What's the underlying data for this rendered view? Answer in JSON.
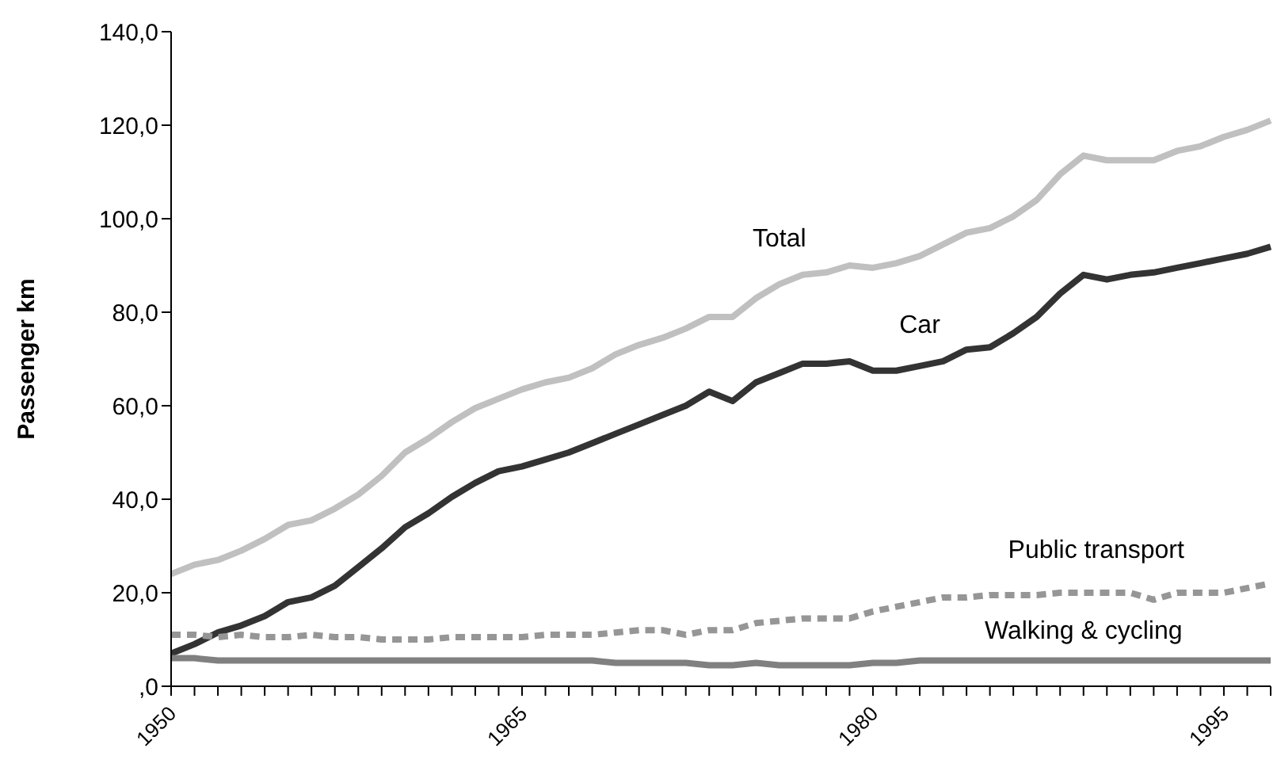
{
  "chart_data": {
    "type": "line",
    "ylabel": "Passenger km",
    "categories": [
      "1950",
      null,
      null,
      null,
      null,
      null,
      null,
      null,
      null,
      null,
      null,
      null,
      null,
      null,
      null,
      "1965",
      null,
      null,
      null,
      null,
      null,
      null,
      null,
      null,
      null,
      null,
      null,
      null,
      null,
      null,
      "1980",
      null,
      null,
      null,
      null,
      null,
      null,
      null,
      null,
      null,
      null,
      null,
      null,
      null,
      null,
      "1995",
      null,
      null
    ],
    "series": [
      {
        "name": "Total",
        "color": "#c0c0c0",
        "line_style": "solid",
        "values": [
          24,
          26,
          27,
          29,
          31.5,
          34.5,
          35.5,
          38,
          41,
          45,
          50,
          53,
          56.5,
          59.5,
          61.5,
          63.5,
          65,
          66,
          68,
          71,
          73,
          74.5,
          76.5,
          79,
          79,
          83,
          86,
          88,
          88.5,
          90,
          89.5,
          90.5,
          92,
          94.5,
          97,
          98,
          100.5,
          104,
          109.5,
          113.5,
          112.5,
          112.5,
          112.5,
          114.5,
          115.5,
          117.5,
          119,
          121
        ]
      },
      {
        "name": "Car",
        "color": "#333333",
        "line_style": "solid",
        "values": [
          7,
          9,
          11.5,
          13,
          15,
          18,
          19,
          21.5,
          25.5,
          29.5,
          34,
          37,
          40.5,
          43.5,
          46,
          47,
          48.5,
          50,
          52,
          54,
          56,
          58,
          60,
          63,
          61,
          65,
          67,
          69,
          69,
          69.5,
          67.5,
          67.5,
          68.5,
          69.5,
          72,
          72.5,
          75.5,
          79,
          84,
          88,
          87,
          88,
          88.5,
          89.5,
          90.5,
          91.5,
          92.5,
          94
        ]
      },
      {
        "name": "Public transport",
        "color": "#969696",
        "line_style": "dashed",
        "values": [
          11,
          11,
          10.5,
          11,
          10.5,
          10.5,
          11,
          10.5,
          10.5,
          10,
          10,
          10,
          10.5,
          10.5,
          10.5,
          10.5,
          11,
          11,
          11,
          11.5,
          12,
          12,
          11,
          12,
          12,
          13.5,
          14,
          14.5,
          14.5,
          14.5,
          16,
          17,
          18,
          19,
          19,
          19.5,
          19.5,
          19.5,
          20,
          20,
          20,
          20,
          18.5,
          20,
          20,
          20,
          21,
          22
        ]
      },
      {
        "name": "Walking & cycling",
        "color": "#808080",
        "line_style": "solid",
        "values": [
          6,
          6,
          5.5,
          5.5,
          5.5,
          5.5,
          5.5,
          5.5,
          5.5,
          5.5,
          5.5,
          5.5,
          5.5,
          5.5,
          5.5,
          5.5,
          5.5,
          5.5,
          5.5,
          5,
          5,
          5,
          5,
          4.5,
          4.5,
          5,
          4.5,
          4.5,
          4.5,
          4.5,
          5,
          5,
          5.5,
          5.5,
          5.5,
          5.5,
          5.5,
          5.5,
          5.5,
          5.5,
          5.5,
          5.5,
          5.5,
          5.5,
          5.5,
          5.5,
          5.5,
          5.5
        ]
      }
    ],
    "ylim": [
      0,
      140
    ],
    "yticks": [
      {
        "value": 0,
        "label": ",0"
      },
      {
        "value": 20,
        "label": "20,0"
      },
      {
        "value": 40,
        "label": "40,0"
      },
      {
        "value": 60,
        "label": "60,0"
      },
      {
        "value": 80,
        "label": "80,0"
      },
      {
        "value": 100,
        "label": "100,0"
      },
      {
        "value": 120,
        "label": "120,0"
      },
      {
        "value": 140,
        "label": "140,0"
      }
    ],
    "grid": false,
    "legend": false,
    "marker": "none"
  }
}
